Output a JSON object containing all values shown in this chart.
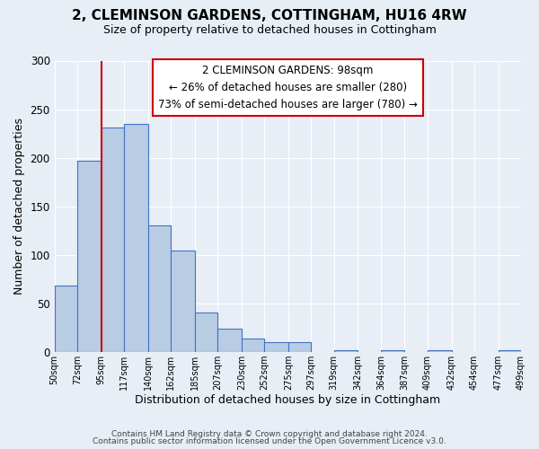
{
  "title": "2, CLEMINSON GARDENS, COTTINGHAM, HU16 4RW",
  "subtitle": "Size of property relative to detached houses in Cottingham",
  "xlabel": "Distribution of detached houses by size in Cottingham",
  "ylabel": "Number of detached properties",
  "bar_color": "#b8cce4",
  "bar_edge_color": "#4472c4",
  "background_color": "#e8eef6",
  "bins": [
    50,
    72,
    95,
    117,
    140,
    162,
    185,
    207,
    230,
    252,
    275,
    297,
    319,
    342,
    364,
    387,
    409,
    432,
    454,
    477,
    499
  ],
  "counts": [
    68,
    197,
    231,
    235,
    130,
    104,
    40,
    24,
    14,
    10,
    10,
    0,
    2,
    0,
    2,
    0,
    2,
    0,
    0,
    2
  ],
  "tick_labels": [
    "50sqm",
    "72sqm",
    "95sqm",
    "117sqm",
    "140sqm",
    "162sqm",
    "185sqm",
    "207sqm",
    "230sqm",
    "252sqm",
    "275sqm",
    "297sqm",
    "319sqm",
    "342sqm",
    "364sqm",
    "387sqm",
    "409sqm",
    "432sqm",
    "454sqm",
    "477sqm",
    "499sqm"
  ],
  "ylim": [
    0,
    300
  ],
  "yticks": [
    0,
    50,
    100,
    150,
    200,
    250,
    300
  ],
  "red_line_x": 95,
  "annotation_title": "2 CLEMINSON GARDENS: 98sqm",
  "annotation_line1": "← 26% of detached houses are smaller (280)",
  "annotation_line2": "73% of semi-detached houses are larger (780) →",
  "annotation_box_color": "#ffffff",
  "annotation_box_edge": "#cc0000",
  "red_line_color": "#cc0000",
  "footer1": "Contains HM Land Registry data © Crown copyright and database right 2024.",
  "footer2": "Contains public sector information licensed under the Open Government Licence v3.0."
}
